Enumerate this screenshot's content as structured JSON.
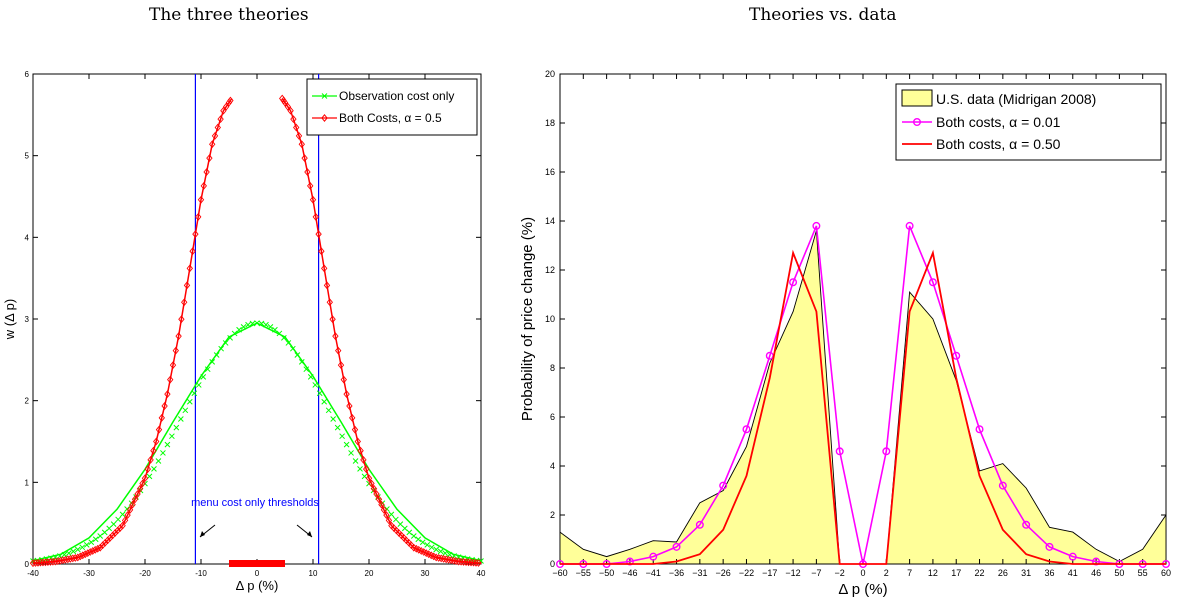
{
  "chart_data": [
    {
      "type": "line",
      "title": "The three theories",
      "xlabel": "Δ p (%)",
      "ylabel": "w (Δ p)",
      "xlim": [
        -40,
        40
      ],
      "ylim": [
        0,
        6
      ],
      "xticks": [
        -40,
        -30,
        -20,
        -10,
        0,
        10,
        20,
        30,
        40
      ],
      "yticks": [
        0,
        1,
        2,
        3,
        4,
        5,
        6
      ],
      "grid": false,
      "legend_position": "top-right",
      "series": [
        {
          "name": "Observation cost only",
          "color": "#00ff00",
          "marker": "x",
          "x": [
            -40,
            -35,
            -30,
            -25,
            -20,
            -15,
            -10,
            -5,
            0,
            5,
            10,
            15,
            20,
            25,
            30,
            35,
            40
          ],
          "y": [
            0.04,
            0.12,
            0.32,
            0.67,
            1.16,
            1.74,
            2.3,
            2.78,
            2.95,
            2.78,
            2.3,
            1.74,
            1.16,
            0.67,
            0.32,
            0.12,
            0.04
          ]
        },
        {
          "name": "Both Costs, α = 0.5",
          "color": "#ff0000",
          "marker": "diamond",
          "x": [
            -40,
            -36,
            -32,
            -28,
            -24,
            -20,
            -18,
            -16,
            -14,
            -12,
            -10,
            -8,
            -6,
            -5,
            -4.5,
            4.5,
            5,
            6,
            8,
            10,
            12,
            14,
            16,
            18,
            20,
            24,
            28,
            32,
            36,
            40
          ],
          "y": [
            0.01,
            0.03,
            0.08,
            0.2,
            0.47,
            1.05,
            1.5,
            2.08,
            2.79,
            3.62,
            4.46,
            5.14,
            5.55,
            5.65,
            5.7,
            5.7,
            5.65,
            5.55,
            5.14,
            4.46,
            3.62,
            2.79,
            2.08,
            1.5,
            1.05,
            0.47,
            0.2,
            0.08,
            0.03,
            0.01
          ]
        },
        {
          "name": "",
          "color": "#ff0000",
          "marker": "diamond",
          "x": [
            -5,
            5
          ],
          "y": [
            0,
            0
          ]
        }
      ],
      "vlines": {
        "x": [
          -11,
          11
        ],
        "color": "#0000ff"
      },
      "annotations": [
        {
          "text": "menu cost only thresholds",
          "color": "#0000ff"
        }
      ]
    },
    {
      "type": "area",
      "title": "Theories vs. data",
      "xlabel": "Δ p (%)",
      "ylabel": "Probability of price change (%)",
      "ylim": [
        0,
        20
      ],
      "yticks": [
        0,
        2,
        4,
        6,
        8,
        10,
        12,
        14,
        16,
        18,
        20
      ],
      "categories": [
        "−60",
        "−55",
        "−50",
        "−46",
        "−41",
        "−36",
        "−31",
        "−26",
        "−22",
        "−17",
        "−12",
        "−7",
        "−2",
        "0",
        "2",
        "7",
        "12",
        "17",
        "22",
        "26",
        "31",
        "36",
        "41",
        "46",
        "50",
        "55",
        "60"
      ],
      "grid": false,
      "legend_position": "top-right",
      "series": [
        {
          "name": "U.S. data (Midrigan 2008)",
          "type": "area",
          "color": "#ffff99",
          "values": [
            1.3,
            0.6,
            0.3,
            0.6,
            0.95,
            0.9,
            2.5,
            3.0,
            4.8,
            8.2,
            10.3,
            13.6,
            0,
            0,
            0,
            11.1,
            10.0,
            7.5,
            3.8,
            4.1,
            3.1,
            1.5,
            1.3,
            0.6,
            0.1,
            0.6,
            2.0
          ]
        },
        {
          "name": "Both costs, α = 0.01",
          "type": "line",
          "color": "#ff00ff",
          "marker": "circle",
          "values": [
            0,
            0,
            0,
            0.1,
            0.3,
            0.7,
            1.6,
            3.2,
            5.5,
            8.5,
            11.5,
            13.8,
            4.6,
            0,
            4.6,
            13.8,
            11.5,
            8.5,
            5.5,
            3.2,
            1.6,
            0.7,
            0.3,
            0.1,
            0,
            0,
            0
          ]
        },
        {
          "name": "Both costs, α = 0.50",
          "type": "line",
          "color": "#ff0000",
          "values": [
            0,
            0,
            0,
            0,
            0,
            0.1,
            0.4,
            1.4,
            3.6,
            7.6,
            12.7,
            10.3,
            0,
            0,
            0,
            10.3,
            12.7,
            7.6,
            3.6,
            1.4,
            0.4,
            0.1,
            0,
            0,
            0,
            0,
            0
          ]
        }
      ]
    }
  ]
}
